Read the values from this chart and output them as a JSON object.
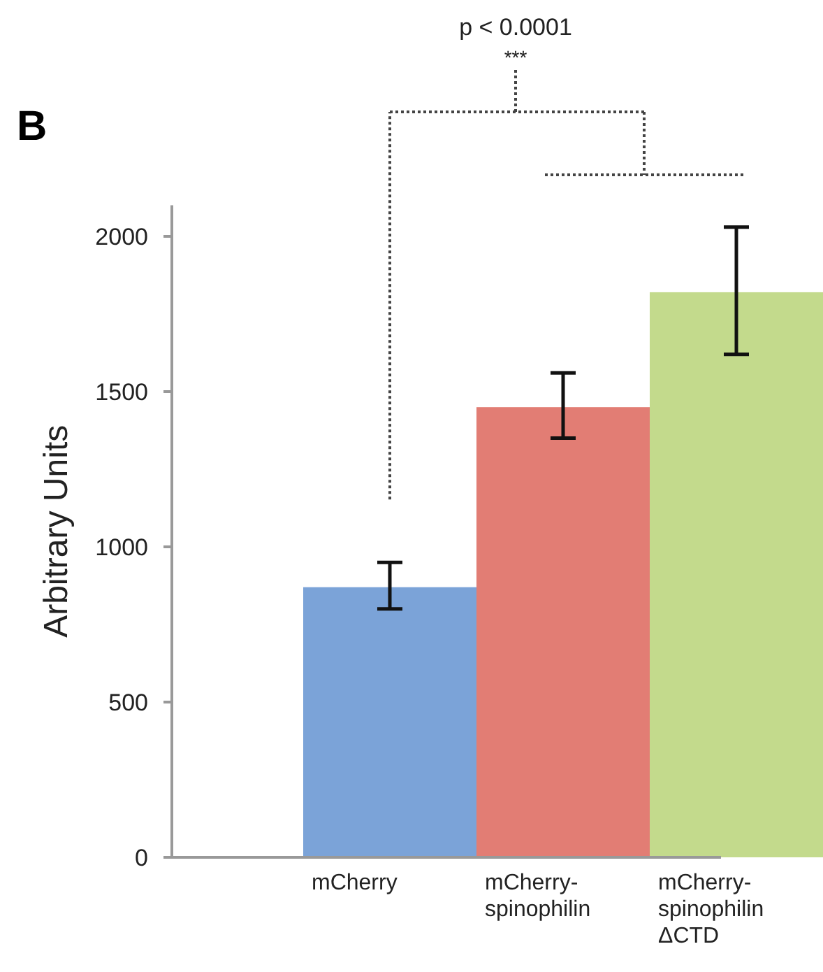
{
  "chart_data": {
    "type": "bar",
    "title": "B",
    "ylabel": "Arbitrary Units",
    "categories": [
      "mCherry",
      "mCherry-\nspinophilin",
      "mCherry-\nspinophilin\nΔCTD"
    ],
    "values": [
      870,
      1450,
      1820
    ],
    "colors": [
      "#7ba3d8",
      "#e27d74",
      "#c3da8c"
    ],
    "errors": [
      [
        800,
        950
      ],
      [
        1350,
        1560
      ],
      [
        1620,
        2030
      ]
    ],
    "ylim": [
      0,
      2100
    ],
    "yticks": [
      0,
      500,
      1000,
      1500,
      2000
    ],
    "grid": false,
    "annotations": [
      "p < 0.0001",
      "***"
    ]
  }
}
